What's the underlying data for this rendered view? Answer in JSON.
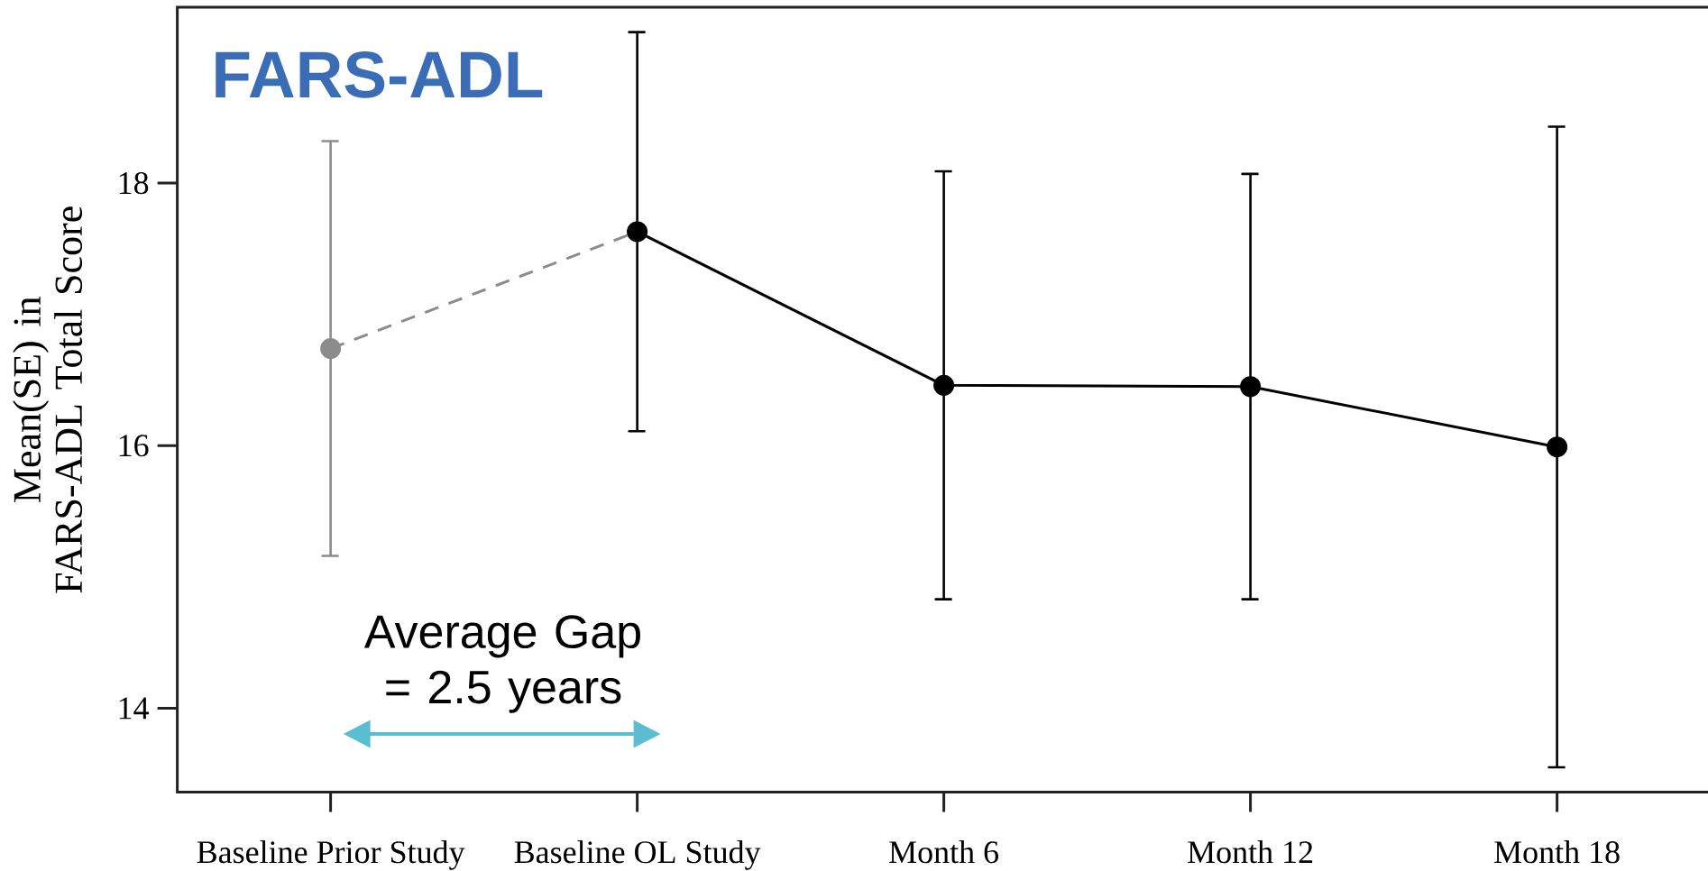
{
  "chart_data": {
    "type": "line",
    "title": "FARS-ADL",
    "ylabel": "Mean(SE) in FARS-ADL Total Score",
    "annotations": [
      "Average Gap = 2.5 years"
    ],
    "categories": [
      "Baseline Prior Study",
      "Baseline OL Study",
      "Month 6",
      "Month 12",
      "Month 18"
    ],
    "series": [
      {
        "color": "#8c8c8c",
        "line_style": "dashed",
        "values": [
          16.74,
          17.63,
          null,
          null,
          null
        ],
        "errors": [
          1.58,
          null,
          null,
          null,
          null
        ]
      },
      {
        "color": "#000000",
        "line_style": "solid",
        "values": [
          null,
          17.63,
          16.46,
          16.45,
          15.99
        ],
        "errors": [
          null,
          1.52,
          1.63,
          1.62,
          2.44
        ]
      }
    ],
    "ylim": [
      13.36,
      19.34
    ],
    "yticks": [
      14,
      16,
      18
    ],
    "marker": "circle"
  }
}
